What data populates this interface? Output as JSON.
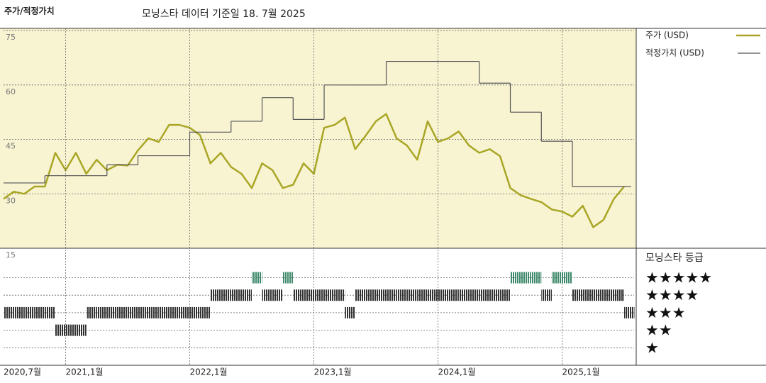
{
  "chart_data": [
    {
      "type": "line",
      "title": "주가/적정가치",
      "subtitle": "모닝스타 데이터 기준일 18. 7월 2025",
      "xlim": [
        2020.5,
        2025.58
      ],
      "ylim": [
        15,
        75.6
      ],
      "yticks": [
        15,
        30,
        45,
        60,
        75
      ],
      "grid": true,
      "legend": "right",
      "series": [
        {
          "name": "주가 (USD)",
          "color": "#a9a626",
          "width": 2.5,
          "x": [
            2020.5,
            2020.583,
            2020.667,
            2020.75,
            2020.833,
            2020.917,
            2021.0,
            2021.083,
            2021.167,
            2021.25,
            2021.333,
            2021.417,
            2021.5,
            2021.583,
            2021.667,
            2021.75,
            2021.833,
            2021.917,
            2022.0,
            2022.083,
            2022.167,
            2022.25,
            2022.333,
            2022.417,
            2022.5,
            2022.583,
            2022.667,
            2022.75,
            2022.833,
            2022.917,
            2023.0,
            2023.083,
            2023.167,
            2023.25,
            2023.333,
            2023.417,
            2023.5,
            2023.583,
            2023.667,
            2023.75,
            2023.833,
            2023.917,
            2024.0,
            2024.083,
            2024.167,
            2024.25,
            2024.333,
            2024.417,
            2024.5,
            2024.583,
            2024.667,
            2024.75,
            2024.833,
            2024.917,
            2025.0,
            2025.083,
            2025.167,
            2025.25,
            2025.333,
            2025.417,
            2025.5
          ],
          "values": [
            28.6,
            30.6,
            30,
            32,
            32,
            41.3,
            36.5,
            41.3,
            35.5,
            39.4,
            36.5,
            38,
            37.8,
            42,
            45.3,
            44.3,
            49,
            49,
            48.2,
            46.2,
            38.4,
            41.3,
            37.4,
            35.5,
            31.6,
            38.4,
            36.5,
            31.6,
            32.5,
            38.4,
            35.5,
            48.2,
            49,
            51,
            42.3,
            46,
            50,
            52,
            45.3,
            43.3,
            39.4,
            50,
            44.3,
            45.3,
            47.2,
            43.3,
            41.3,
            42.3,
            40.4,
            31.6,
            29.6,
            28.6,
            27.7,
            25.7,
            25.1,
            23.7,
            26.7,
            20.8,
            22.8,
            28.6,
            32
          ]
        },
        {
          "name": "적정가치 (USD)",
          "color": "#555555",
          "width": 1.2,
          "step": true,
          "x": [
            2020.5,
            2020.833,
            2021.333,
            2021.583,
            2022.0,
            2022.333,
            2022.583,
            2022.833,
            2023.083,
            2023.583,
            2024.333,
            2024.583,
            2024.833,
            2025.083
          ],
          "values": [
            33,
            35,
            38,
            40.5,
            47,
            50,
            56.5,
            50.5,
            60,
            66.5,
            60.5,
            52.5,
            44.5,
            32
          ]
        }
      ]
    },
    {
      "type": "rating",
      "title": "모닝스타 등급",
      "xlim": [
        2020.5,
        2025.58
      ],
      "xticks": [
        {
          "value": 2020.5,
          "label": "2020,7월"
        },
        {
          "value": 2021,
          "label": "2021,1월"
        },
        {
          "value": 2022,
          "label": "2022,1월"
        },
        {
          "value": 2023,
          "label": "2023,1월"
        },
        {
          "value": 2024,
          "label": "2024,1월"
        },
        {
          "value": 2025,
          "label": "2025,1월"
        }
      ],
      "ylim": [
        0,
        6.6
      ],
      "yticks": [
        {
          "value": 5,
          "label": "★★★★★"
        },
        {
          "value": 4,
          "label": "★★★★"
        },
        {
          "value": 3,
          "label": "★★★"
        },
        {
          "value": 2,
          "label": "★★"
        },
        {
          "value": 1,
          "label": "★"
        }
      ],
      "color": "#333333",
      "top_color": "#3f8a6c",
      "x": [
        2020.5,
        2020.583,
        2020.667,
        2020.75,
        2020.833,
        2020.917,
        2021.0,
        2021.083,
        2021.167,
        2021.25,
        2021.333,
        2021.417,
        2021.5,
        2021.583,
        2021.667,
        2021.75,
        2021.833,
        2021.917,
        2022.0,
        2022.083,
        2022.167,
        2022.25,
        2022.333,
        2022.417,
        2022.5,
        2022.583,
        2022.667,
        2022.75,
        2022.833,
        2022.917,
        2023.0,
        2023.083,
        2023.167,
        2023.25,
        2023.333,
        2023.417,
        2023.5,
        2023.583,
        2023.667,
        2023.75,
        2023.833,
        2023.917,
        2024.0,
        2024.083,
        2024.167,
        2024.25,
        2024.333,
        2024.417,
        2024.5,
        2024.583,
        2024.667,
        2024.75,
        2024.833,
        2024.917,
        2025.0,
        2025.083,
        2025.167,
        2025.25,
        2025.333,
        2025.417,
        2025.5
      ],
      "values": [
        3,
        3,
        3,
        3,
        3,
        2,
        2,
        2,
        3,
        3,
        3,
        3,
        3,
        3,
        3,
        3,
        3,
        3,
        3,
        3,
        4,
        4,
        4,
        4,
        5,
        4,
        4,
        5,
        4,
        4,
        4,
        4,
        4,
        3,
        4,
        4,
        4,
        4,
        4,
        4,
        4,
        4,
        4,
        4,
        4,
        4,
        4,
        4,
        4,
        5,
        5,
        5,
        4,
        5,
        5,
        4,
        4,
        4,
        4,
        4,
        3
      ]
    }
  ]
}
